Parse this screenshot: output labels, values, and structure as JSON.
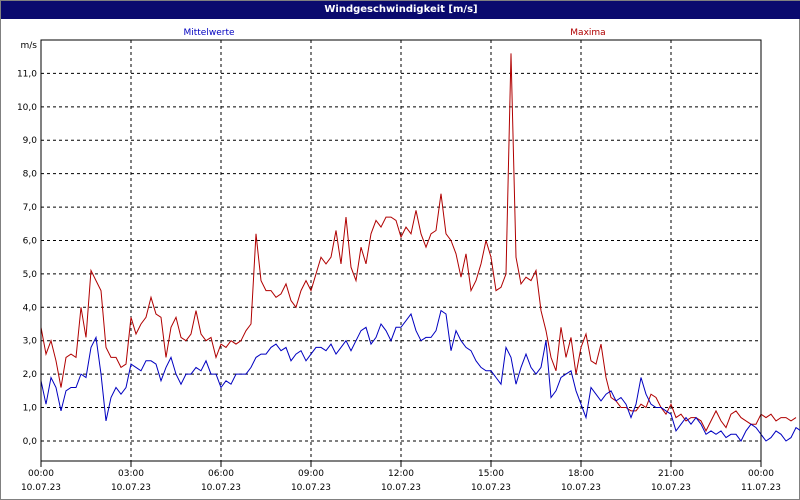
{
  "window": {
    "title": "Windgeschwindigkeit [m/s]"
  },
  "legend": {
    "mean_label": "Mittelwerte",
    "max_label": "Maxima",
    "mean_color": "#0000c0",
    "max_color": "#b00000"
  },
  "chart_data": {
    "type": "line",
    "title": "Windgeschwindigkeit [m/s]",
    "ylabel": "m/s",
    "ylim": [
      -0.6,
      12.0
    ],
    "xlim_hours": [
      0,
      24
    ],
    "grid": true,
    "y_ticks": [
      "0,0",
      "1,0",
      "2,0",
      "3,0",
      "4,0",
      "5,0",
      "6,0",
      "7,0",
      "8,0",
      "9,0",
      "10,0",
      "11,0"
    ],
    "x_ticks": [
      {
        "time": "00:00",
        "date": "10.07.23"
      },
      {
        "time": "03:00",
        "date": "10.07.23"
      },
      {
        "time": "06:00",
        "date": "10.07.23"
      },
      {
        "time": "09:00",
        "date": "10.07.23"
      },
      {
        "time": "12:00",
        "date": "10.07.23"
      },
      {
        "time": "15:00",
        "date": "10.07.23"
      },
      {
        "time": "18:00",
        "date": "10.07.23"
      },
      {
        "time": "21:00",
        "date": "10.07.23"
      },
      {
        "time": "00:00",
        "date": "11.07.23"
      }
    ],
    "sample_interval_minutes": 10,
    "series": [
      {
        "name": "Mittelwerte",
        "values": [
          1.8,
          1.1,
          1.9,
          1.6,
          0.9,
          1.5,
          1.6,
          1.6,
          2.0,
          1.9,
          2.8,
          3.1,
          2.0,
          0.6,
          1.3,
          1.6,
          1.4,
          1.6,
          2.3,
          2.2,
          2.1,
          2.4,
          2.4,
          2.3,
          1.8,
          2.2,
          2.5,
          2.0,
          1.7,
          2.0,
          2.0,
          2.2,
          2.1,
          2.4,
          2.0,
          2.0,
          1.6,
          1.8,
          1.7,
          2.0,
          2.0,
          2.0,
          2.2,
          2.5,
          2.6,
          2.6,
          2.8,
          2.9,
          2.7,
          2.8,
          2.4,
          2.6,
          2.7,
          2.4,
          2.6,
          2.8,
          2.8,
          2.7,
          2.9,
          2.6,
          2.8,
          3.0,
          2.7,
          3.0,
          3.3,
          3.4,
          2.9,
          3.1,
          3.5,
          3.3,
          3.0,
          3.4,
          3.4,
          3.6,
          3.8,
          3.3,
          3.0,
          3.1,
          3.1,
          3.3,
          3.9,
          3.8,
          2.7,
          3.3,
          3.0,
          2.8,
          2.7,
          2.4,
          2.2,
          2.1,
          2.1,
          1.9,
          1.7,
          2.8,
          2.5,
          1.7,
          2.2,
          2.6,
          2.2,
          2.0,
          2.2,
          3.0,
          1.3,
          1.5,
          1.9,
          2.0,
          2.1,
          1.5,
          1.1,
          0.7,
          1.6,
          1.4,
          1.2,
          1.4,
          1.5,
          1.2,
          1.3,
          1.1,
          0.7,
          1.1,
          1.9,
          1.4,
          1.1,
          1.0,
          1.0,
          0.9,
          0.8,
          0.3,
          0.5,
          0.7,
          0.5,
          0.7,
          0.5,
          0.2,
          0.3,
          0.2,
          0.3,
          0.1,
          0.2,
          0.2,
          0.0,
          0.3,
          0.5,
          0.4,
          0.2,
          0.0,
          0.1,
          0.3,
          0.2,
          0.0,
          0.1,
          0.4,
          0.3,
          0.1
        ]
      },
      {
        "name": "Maxima",
        "values": [
          3.4,
          2.6,
          3.0,
          2.4,
          1.6,
          2.5,
          2.6,
          2.5,
          4.0,
          3.1,
          5.1,
          4.8,
          4.5,
          2.8,
          2.5,
          2.5,
          2.2,
          2.3,
          3.7,
          3.2,
          3.5,
          3.7,
          4.3,
          3.8,
          3.7,
          2.5,
          3.4,
          3.7,
          3.1,
          3.0,
          3.2,
          3.9,
          3.2,
          3.0,
          3.1,
          2.5,
          2.9,
          2.8,
          3.0,
          2.9,
          3.0,
          3.3,
          3.5,
          6.2,
          4.8,
          4.5,
          4.5,
          4.3,
          4.4,
          4.7,
          4.2,
          4.0,
          4.5,
          4.8,
          4.5,
          5.0,
          5.5,
          5.3,
          5.5,
          6.3,
          5.3,
          6.7,
          5.2,
          4.8,
          5.8,
          5.3,
          6.2,
          6.6,
          6.4,
          6.7,
          6.7,
          6.6,
          6.1,
          6.4,
          6.2,
          6.9,
          6.2,
          5.8,
          6.2,
          6.3,
          7.4,
          6.2,
          6.0,
          5.6,
          4.9,
          5.6,
          4.5,
          4.8,
          5.3,
          6.0,
          5.5,
          4.5,
          4.6,
          5.0,
          11.6,
          5.5,
          4.7,
          4.9,
          4.8,
          5.1,
          3.9,
          3.3,
          2.5,
          2.1,
          3.4,
          2.5,
          3.1,
          2.0,
          2.8,
          3.2,
          2.4,
          2.3,
          2.9,
          1.9,
          1.3,
          1.2,
          1.0,
          1.0,
          0.9,
          0.9,
          1.1,
          1.0,
          1.4,
          1.3,
          1.0,
          0.8,
          1.1,
          0.7,
          0.8,
          0.6,
          0.7,
          0.7,
          0.6,
          0.3,
          0.6,
          0.9,
          0.6,
          0.4,
          0.8,
          0.9,
          0.7,
          0.6,
          0.5,
          0.5,
          0.8,
          0.7,
          0.8,
          0.6,
          0.7,
          0.7,
          0.6,
          0.7
        ]
      }
    ]
  }
}
